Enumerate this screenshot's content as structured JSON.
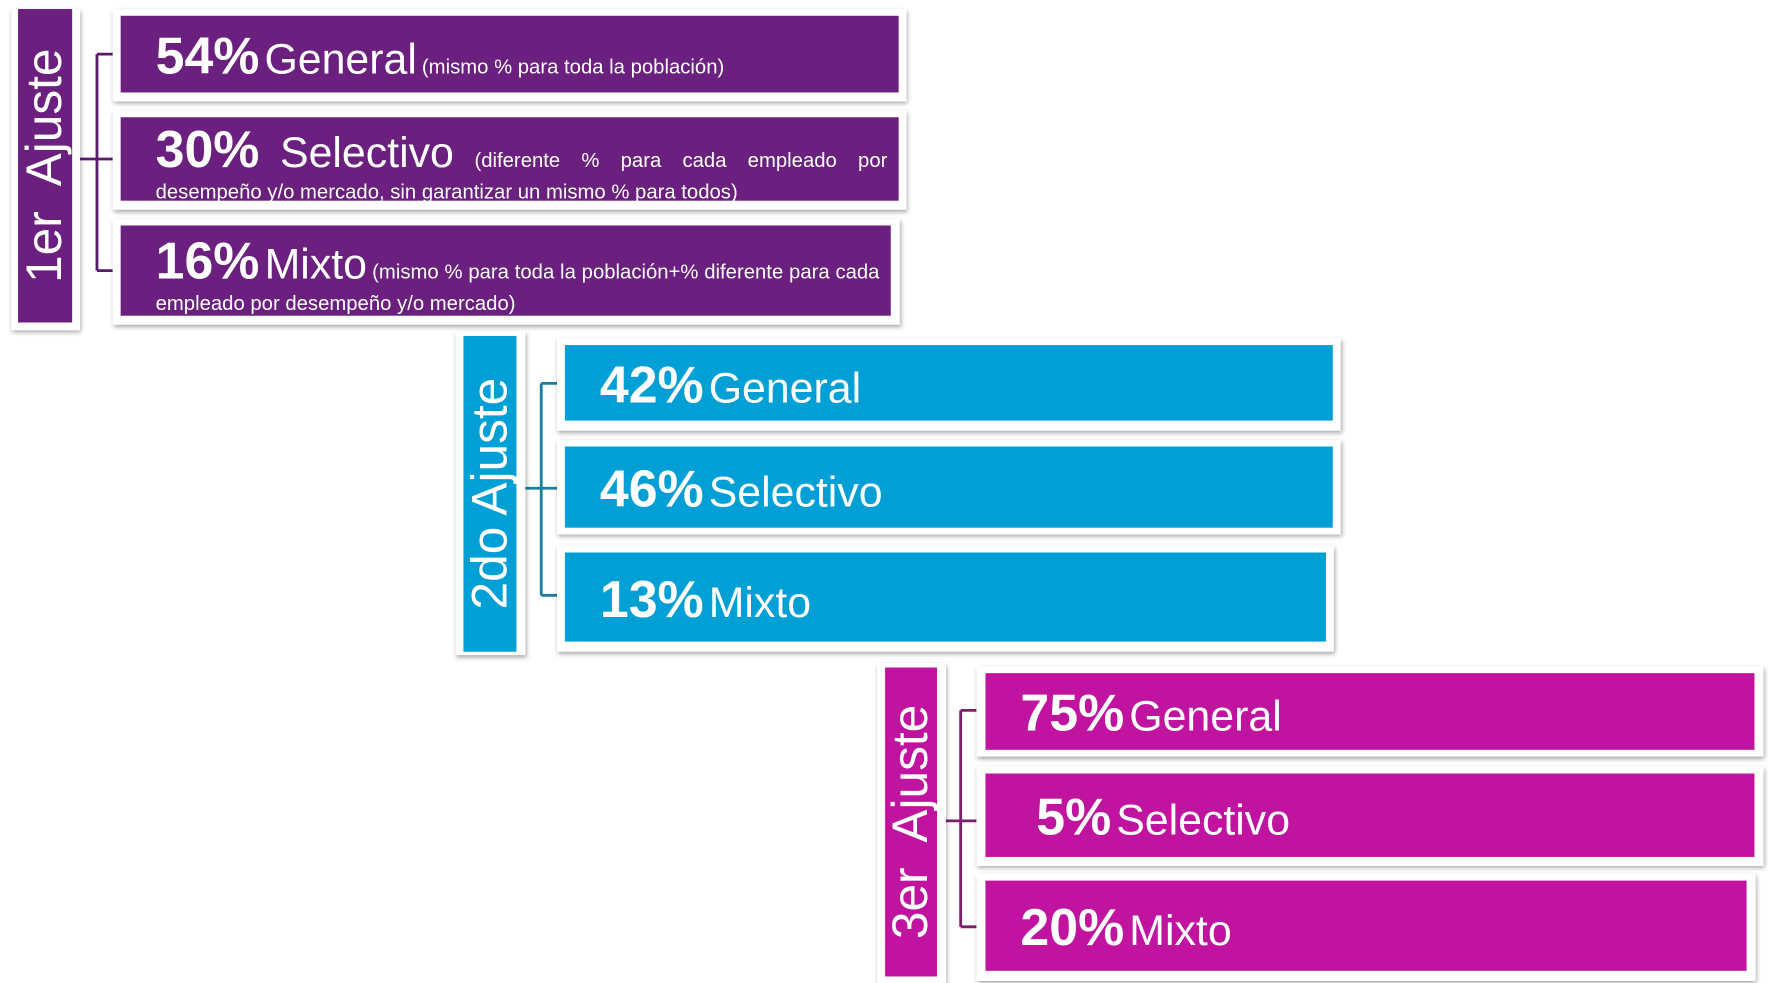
{
  "groups": [
    {
      "label": "1er  Ajuste",
      "items": [
        {
          "pct": "54%",
          "name": "General",
          "note": "(mismo % para toda la población)"
        },
        {
          "pct": "30%",
          "name": "Selectivo",
          "note": "(diferente % para cada empleado por desempeño y/o mercado, sin garantizar un mismo % para todos)"
        },
        {
          "pct": "16%",
          "name": "Mixto",
          "note": "(mismo % para toda la población+% diferente para cada empleado por desempeño y/o mercado)"
        }
      ]
    },
    {
      "label": "2do Ajuste",
      "items": [
        {
          "pct": "42%",
          "name": "General"
        },
        {
          "pct": "46%",
          "name": "Selectivo"
        },
        {
          "pct": "13%",
          "name": "Mixto"
        }
      ]
    },
    {
      "label": "3er  Ajuste",
      "items": [
        {
          "pct": "75%",
          "name": "General"
        },
        {
          "pct": "5%",
          "name": "Selectivo"
        },
        {
          "pct": "20%",
          "name": "Mixto"
        }
      ]
    }
  ]
}
